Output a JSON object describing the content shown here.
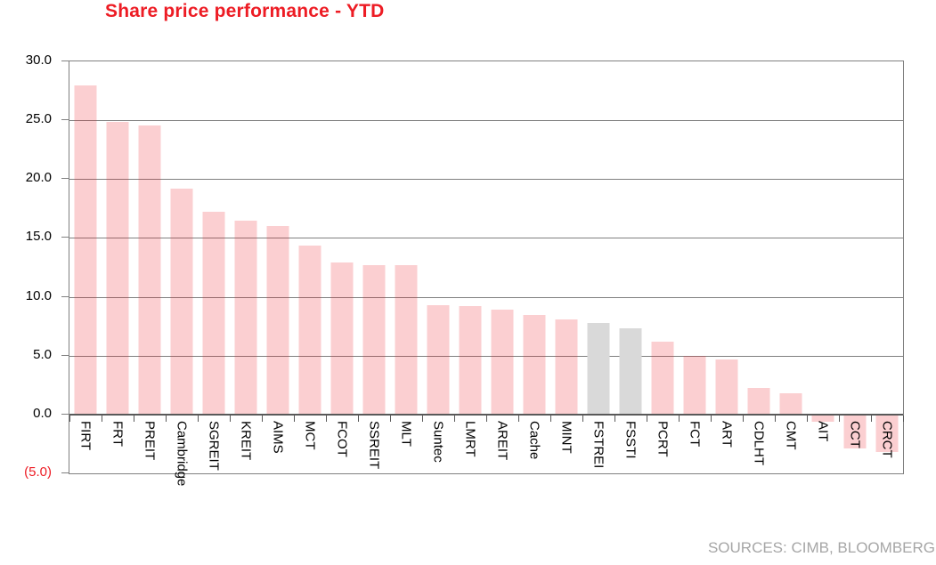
{
  "title": "Share price performance - YTD",
  "source_note": "SOURCES: CIMB, BLOOMBERG",
  "colors": {
    "title": "#ed1c24",
    "bar_pink": "rgba(237,28,36,0.21)",
    "bar_gray": "#d9d9d9",
    "gridline": "#808080",
    "axis_line": "#595959",
    "plot_border": "#808080",
    "negative_tick_label": "#ed1c24",
    "source_text": "#a6a6a6"
  },
  "chart_data": {
    "type": "bar",
    "title": "Share price performance - YTD",
    "categories": [
      "FIRT",
      "FRT",
      "PREIT",
      "Cambridge",
      "SGREIT",
      "KREIT",
      "AIMS",
      "MCT",
      "FCOT",
      "SSREIT",
      "MLT",
      "Suntec",
      "LMRT",
      "AREIT",
      "Cache",
      "MINT",
      "FSTREI",
      "FSSTI",
      "PCRT",
      "FCT",
      "ART",
      "CDLHT",
      "CMT",
      "AIT",
      "CCT",
      "CRCT"
    ],
    "values": [
      28.0,
      24.9,
      24.6,
      19.2,
      17.2,
      16.5,
      16.0,
      14.4,
      12.9,
      12.7,
      12.7,
      9.3,
      9.2,
      8.9,
      8.5,
      8.1,
      7.8,
      7.3,
      6.2,
      5.0,
      4.7,
      2.3,
      1.8,
      -0.6,
      -2.9,
      -3.2
    ],
    "gray_categories": [
      "FSTREI",
      "FSSTI"
    ],
    "xlabel": "",
    "ylabel": "",
    "ylim": [
      -5,
      30
    ],
    "yticks": [
      30,
      25,
      20,
      15,
      10,
      5,
      0,
      -5
    ],
    "ytick_labels": [
      "30.0",
      "25.0",
      "20.0",
      "15.0",
      "10.0",
      "5.0",
      "0.0",
      "(5.0)"
    ],
    "grid": true,
    "legend": false
  }
}
